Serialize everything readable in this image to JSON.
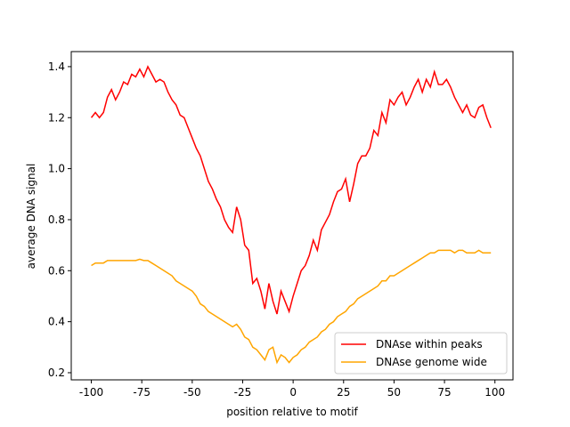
{
  "chart_data": {
    "type": "line",
    "xlabel": "position relative to motif",
    "ylabel": "average DNA signal",
    "x": [
      -100,
      -98,
      -96,
      -94,
      -92,
      -90,
      -88,
      -86,
      -84,
      -82,
      -80,
      -78,
      -76,
      -74,
      -72,
      -70,
      -68,
      -66,
      -64,
      -62,
      -60,
      -58,
      -56,
      -54,
      -52,
      -50,
      -48,
      -46,
      -44,
      -42,
      -40,
      -38,
      -36,
      -34,
      -32,
      -30,
      -28,
      -26,
      -24,
      -22,
      -20,
      -18,
      -16,
      -14,
      -12,
      -10,
      -8,
      -6,
      -4,
      -2,
      0,
      2,
      4,
      6,
      8,
      10,
      12,
      14,
      16,
      18,
      20,
      22,
      24,
      26,
      28,
      30,
      32,
      34,
      36,
      38,
      40,
      42,
      44,
      46,
      48,
      50,
      52,
      54,
      56,
      58,
      60,
      62,
      64,
      66,
      68,
      70,
      72,
      74,
      76,
      78,
      80,
      82,
      84,
      86,
      88,
      90,
      92,
      94,
      96,
      98
    ],
    "series": [
      {
        "name": "DNAse within peaks",
        "color": "#ff0000",
        "values": [
          1.2,
          1.22,
          1.2,
          1.22,
          1.28,
          1.31,
          1.27,
          1.3,
          1.34,
          1.33,
          1.37,
          1.36,
          1.39,
          1.36,
          1.4,
          1.37,
          1.34,
          1.35,
          1.34,
          1.3,
          1.27,
          1.25,
          1.21,
          1.2,
          1.16,
          1.12,
          1.08,
          1.05,
          1.0,
          0.95,
          0.92,
          0.88,
          0.85,
          0.8,
          0.77,
          0.75,
          0.85,
          0.8,
          0.7,
          0.68,
          0.55,
          0.57,
          0.52,
          0.45,
          0.55,
          0.48,
          0.43,
          0.52,
          0.48,
          0.44,
          0.5,
          0.55,
          0.6,
          0.62,
          0.66,
          0.72,
          0.68,
          0.76,
          0.79,
          0.82,
          0.87,
          0.91,
          0.92,
          0.96,
          0.87,
          0.94,
          1.02,
          1.05,
          1.05,
          1.08,
          1.15,
          1.13,
          1.22,
          1.18,
          1.27,
          1.25,
          1.28,
          1.3,
          1.25,
          1.28,
          1.32,
          1.35,
          1.3,
          1.35,
          1.32,
          1.38,
          1.33,
          1.33,
          1.35,
          1.32,
          1.28,
          1.25,
          1.22,
          1.25,
          1.21,
          1.2,
          1.24,
          1.25,
          1.2,
          1.16
        ]
      },
      {
        "name": "DNAse genome wide",
        "color": "#ffa500",
        "values": [
          0.62,
          0.63,
          0.63,
          0.63,
          0.64,
          0.64,
          0.64,
          0.64,
          0.64,
          0.64,
          0.64,
          0.64,
          0.645,
          0.64,
          0.64,
          0.63,
          0.62,
          0.61,
          0.6,
          0.59,
          0.58,
          0.56,
          0.55,
          0.54,
          0.53,
          0.52,
          0.5,
          0.47,
          0.46,
          0.44,
          0.43,
          0.42,
          0.41,
          0.4,
          0.39,
          0.38,
          0.39,
          0.37,
          0.34,
          0.33,
          0.3,
          0.29,
          0.27,
          0.25,
          0.29,
          0.3,
          0.24,
          0.27,
          0.26,
          0.24,
          0.26,
          0.27,
          0.29,
          0.3,
          0.32,
          0.33,
          0.34,
          0.36,
          0.37,
          0.39,
          0.4,
          0.42,
          0.43,
          0.44,
          0.46,
          0.47,
          0.49,
          0.5,
          0.51,
          0.52,
          0.53,
          0.54,
          0.56,
          0.56,
          0.58,
          0.58,
          0.59,
          0.6,
          0.61,
          0.62,
          0.63,
          0.64,
          0.65,
          0.66,
          0.67,
          0.67,
          0.68,
          0.68,
          0.68,
          0.68,
          0.67,
          0.68,
          0.68,
          0.67,
          0.67,
          0.67,
          0.68,
          0.67,
          0.67,
          0.67
        ]
      }
    ],
    "xlim": [
      -109.95,
      108.95
    ],
    "xticks": [
      -100,
      -75,
      -50,
      -25,
      0,
      25,
      50,
      75,
      100
    ],
    "ylim": [
      0.172,
      1.459
    ],
    "yticks": [
      0.2,
      0.4,
      0.6,
      0.8,
      {
        "value": 1,
        "label": "1.0"
      },
      1.2,
      1.4
    ],
    "legend": "lower right",
    "grid": false
  }
}
